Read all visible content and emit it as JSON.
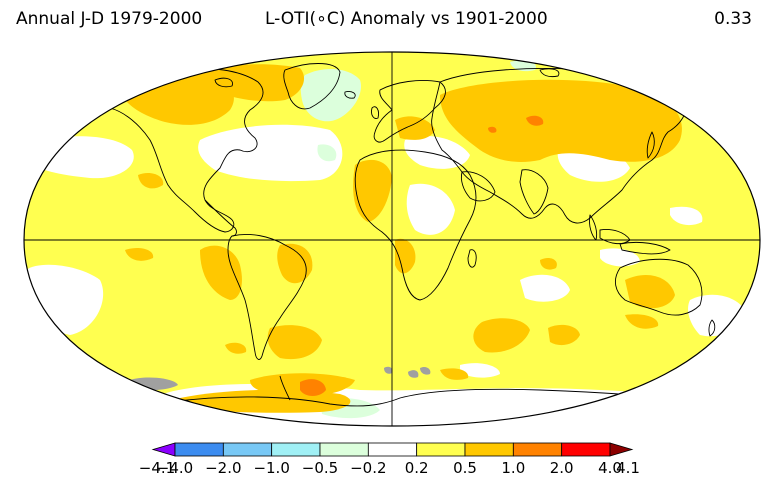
{
  "header": {
    "left": "Annual J-D 1979-2000",
    "center": "L-OTI(∘C) Anomaly vs 1901-2000",
    "right": "0.33"
  },
  "legend": {
    "bins": [
      {
        "color": "#8b00ff"
      },
      {
        "color": "#3c8cf0"
      },
      {
        "color": "#78c8f5"
      },
      {
        "color": "#a0f0f5"
      },
      {
        "color": "#dcffdc"
      },
      {
        "color": "#ffffff"
      },
      {
        "color": "#ffff50"
      },
      {
        "color": "#ffc800"
      },
      {
        "color": "#ff8200"
      },
      {
        "color": "#ff0000"
      },
      {
        "color": "#8c0000"
      }
    ],
    "tick_labels": [
      "−4.1",
      "−4.0",
      "−2.0",
      "−1.0",
      "−0.5",
      "−0.2",
      "0.2",
      "0.5",
      "1.0",
      "2.0",
      "4.0",
      "4.1"
    ]
  },
  "map": {
    "projection": "Robinson",
    "palette": {
      "warm_small": "#ffff50",
      "warm_moderate": "#ffc800",
      "warm_strong": "#ff8200",
      "neutral": "#ffffff",
      "cool_slight": "#dcffdc",
      "missing": "#a0a0a0"
    }
  }
}
